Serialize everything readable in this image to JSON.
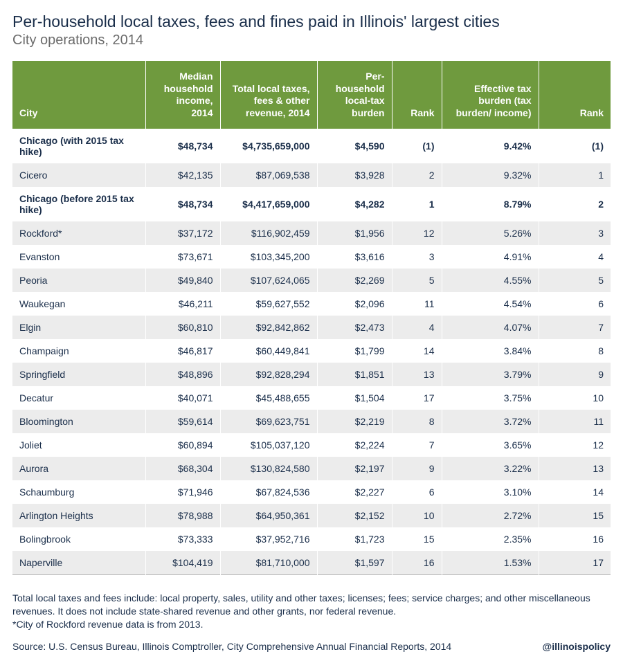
{
  "title": "Per-household local taxes, fees and fines paid in Illinois' largest cities",
  "subtitle": "City operations, 2014",
  "columns": [
    "City",
    "Median household income, 2014",
    "Total local taxes, fees & other revenue, 2014",
    "Per-household local-tax burden",
    "Rank",
    "Effective tax burden (tax burden/ income)",
    "Rank"
  ],
  "column_widths_class": [
    "col-city",
    "col-income",
    "col-total",
    "col-burden",
    "col-rank1",
    "col-eff",
    "col-rank2"
  ],
  "header_bg": "#6f9a3e",
  "header_fg": "#ffffff",
  "row_alt_bg": "#ececec",
  "text_color": "#1a2e4a",
  "rows": [
    {
      "bold": true,
      "cells": [
        "Chicago (with 2015 tax hike)",
        "$48,734",
        "$4,735,659,000",
        "$4,590",
        "(1)",
        "9.42%",
        "(1)"
      ]
    },
    {
      "bold": false,
      "cells": [
        "Cicero",
        "$42,135",
        "$87,069,538",
        "$3,928",
        "2",
        "9.32%",
        "1"
      ]
    },
    {
      "bold": true,
      "cells": [
        "Chicago (before 2015 tax hike)",
        "$48,734",
        "$4,417,659,000",
        "$4,282",
        "1",
        "8.79%",
        "2"
      ]
    },
    {
      "bold": false,
      "cells": [
        "Rockford*",
        "$37,172",
        "$116,902,459",
        "$1,956",
        "12",
        "5.26%",
        "3"
      ]
    },
    {
      "bold": false,
      "cells": [
        "Evanston",
        "$73,671",
        "$103,345,200",
        "$3,616",
        "3",
        "4.91%",
        "4"
      ]
    },
    {
      "bold": false,
      "cells": [
        "Peoria",
        "$49,840",
        "$107,624,065",
        "$2,269",
        "5",
        "4.55%",
        "5"
      ]
    },
    {
      "bold": false,
      "cells": [
        "Waukegan",
        "$46,211",
        "$59,627,552",
        "$2,096",
        "11",
        "4.54%",
        "6"
      ]
    },
    {
      "bold": false,
      "cells": [
        "Elgin",
        "$60,810",
        "$92,842,862",
        "$2,473",
        "4",
        "4.07%",
        "7"
      ]
    },
    {
      "bold": false,
      "cells": [
        "Champaign",
        "$46,817",
        "$60,449,841",
        "$1,799",
        "14",
        "3.84%",
        "8"
      ]
    },
    {
      "bold": false,
      "cells": [
        "Springfield",
        "$48,896",
        "$92,828,294",
        "$1,851",
        "13",
        "3.79%",
        "9"
      ]
    },
    {
      "bold": false,
      "cells": [
        "Decatur",
        "$40,071",
        "$45,488,655",
        "$1,504",
        "17",
        "3.75%",
        "10"
      ]
    },
    {
      "bold": false,
      "cells": [
        "Bloomington",
        "$59,614",
        "$69,623,751",
        "$2,219",
        "8",
        "3.72%",
        "11"
      ]
    },
    {
      "bold": false,
      "cells": [
        "Joliet",
        "$60,894",
        "$105,037,120",
        "$2,224",
        "7",
        "3.65%",
        "12"
      ]
    },
    {
      "bold": false,
      "cells": [
        "Aurora",
        "$68,304",
        "$130,824,580",
        "$2,197",
        "9",
        "3.22%",
        "13"
      ]
    },
    {
      "bold": false,
      "cells": [
        "Schaumburg",
        "$71,946",
        "$67,824,536",
        "$2,227",
        "6",
        "3.10%",
        "14"
      ]
    },
    {
      "bold": false,
      "cells": [
        "Arlington Heights",
        "$78,988",
        "$64,950,361",
        "$2,152",
        "10",
        "2.72%",
        "15"
      ]
    },
    {
      "bold": false,
      "cells": [
        "Bolingbrook",
        "$73,333",
        "$37,952,716",
        "$1,723",
        "15",
        "2.35%",
        "16"
      ]
    },
    {
      "bold": false,
      "cells": [
        "Naperville",
        "$104,419",
        "$81,710,000",
        "$1,597",
        "16",
        "1.53%",
        "17"
      ]
    }
  ],
  "footnote1": "Total local taxes and fees include: local property, sales, utility and other taxes; licenses; fees; service charges; and other miscellaneous revenues. It does not include state-shared revenue and other grants, nor federal revenue.",
  "footnote2": "*City of Rockford revenue data is from 2013.",
  "source": "Source: U.S. Census Bureau, Illinois Comptroller, City Comprehensive Annual Financial Reports, 2014",
  "handle": "@illinoispolicy"
}
